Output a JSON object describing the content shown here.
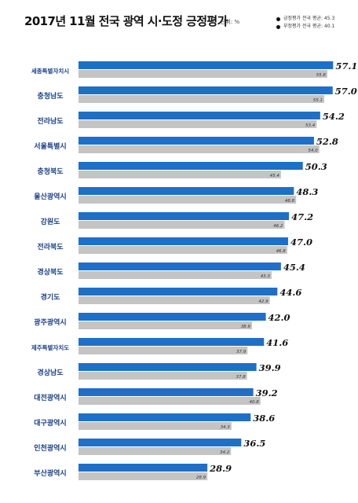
{
  "title": "2017년 11월 전국 광역 시·도정 긍정평가",
  "unit": "단위: %",
  "legend": {
    "current_label": "긍정평가 전국 평균: 45.3",
    "previous_label": "부정평가 전국 평균: 40.1"
  },
  "chart_data": {
    "type": "bar",
    "orientation": "horizontal",
    "title": "2017년 11월 전국 광역 시·도정 긍정평가",
    "categories": [
      "세종특별자치시",
      "충청남도",
      "전라남도",
      "서울특별시",
      "충청북도",
      "울산광역시",
      "강원도",
      "전라북도",
      "경상북도",
      "경기도",
      "광주광역시",
      "제주특별자치도",
      "경상남도",
      "대전광역시",
      "대구광역시",
      "인천광역시",
      "부산광역시"
    ],
    "series": [
      {
        "name": "긍정평가 전국 평균: 45.3",
        "values": [
          57.1,
          57.0,
          54.2,
          52.8,
          50.3,
          48.3,
          47.2,
          47.0,
          45.4,
          44.6,
          42.0,
          41.6,
          39.9,
          39.2,
          38.6,
          36.5,
          28.9
        ]
      },
      {
        "name": "부정평가 전국 평균: 40.1",
        "values": [
          55.8,
          55.1,
          53.4,
          54.0,
          45.4,
          48.8,
          46.2,
          46.8,
          43.3,
          42.9,
          38.9,
          37.9,
          37.8,
          40.8,
          34.3,
          34.2,
          28.9
        ]
      }
    ],
    "colors": {
      "current": "#1f6fc6",
      "previous": "#c4c4c4",
      "text": "#111111"
    },
    "xlim": [
      0,
      60
    ]
  }
}
